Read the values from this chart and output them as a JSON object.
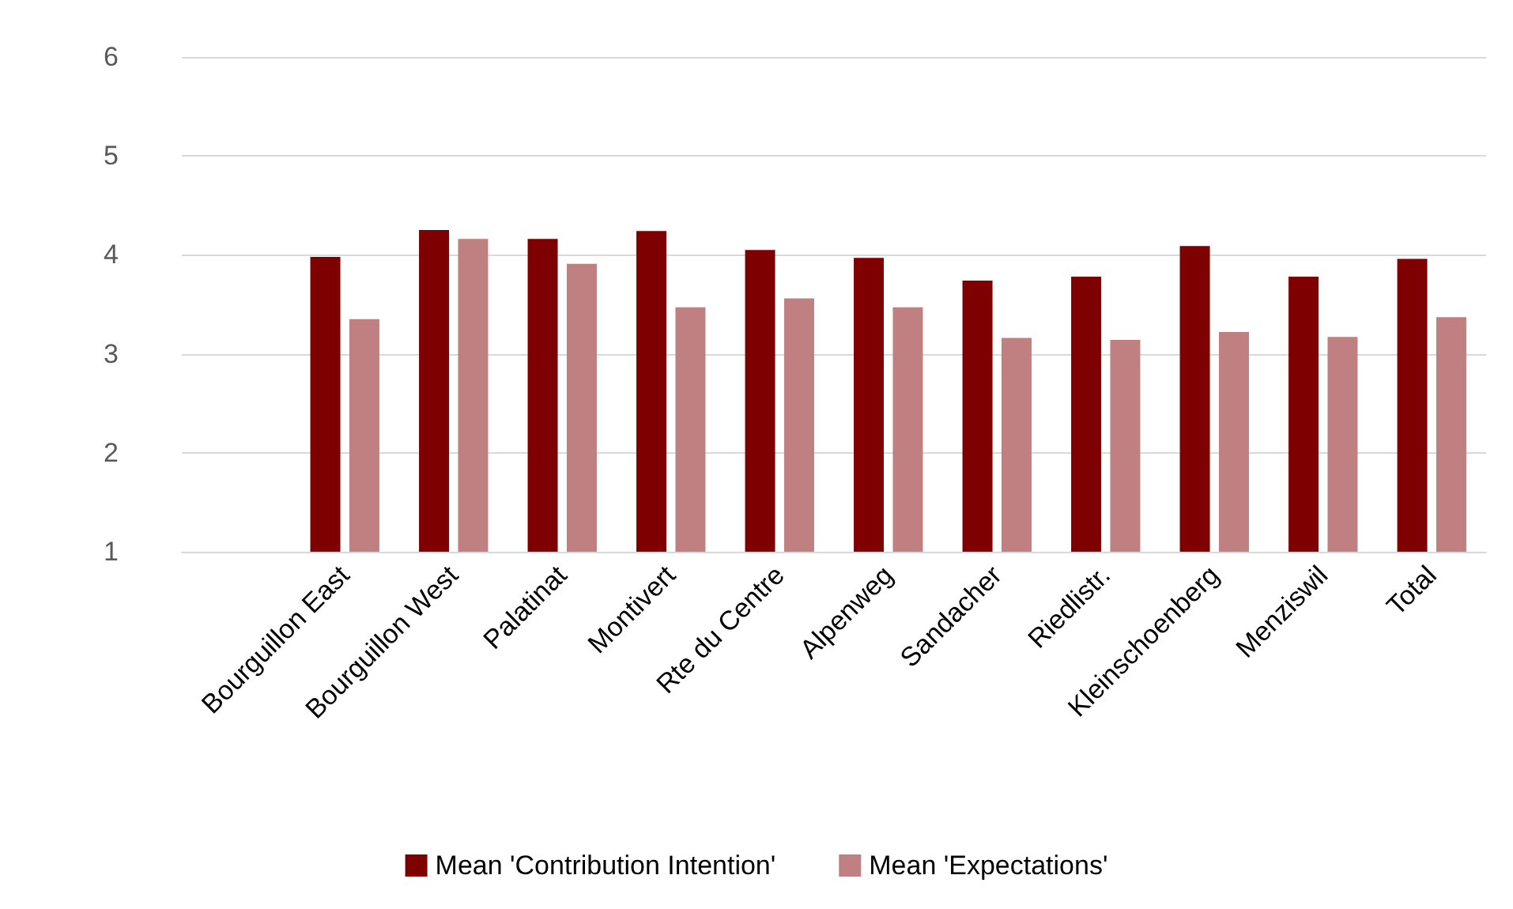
{
  "chart_data": {
    "type": "bar",
    "categories": [
      null,
      "Bourguillon East",
      "Bourguillon West",
      "Palatinat",
      "Montivert",
      "Rte du Centre",
      "Alpenweg",
      "Sandacher",
      "Riedlistr.",
      "Kleinschoenberg",
      "Menziswil",
      "Total"
    ],
    "series": [
      {
        "name": "Mean 'Contribution Intention'",
        "color": "#7f0000",
        "values": [
          null,
          3.98,
          4.25,
          4.16,
          4.24,
          4.05,
          3.97,
          3.74,
          3.78,
          4.09,
          3.78,
          3.96
        ]
      },
      {
        "name": "Mean 'Expectations'",
        "color": "#c08081",
        "values": [
          null,
          3.35,
          4.16,
          3.91,
          3.47,
          3.56,
          3.47,
          3.16,
          3.14,
          3.22,
          3.17,
          3.37
        ]
      }
    ],
    "ylim": [
      1,
      6
    ],
    "yticks": [
      1,
      2,
      3,
      4,
      5,
      6
    ],
    "grid": "y",
    "legend": "bottom"
  }
}
